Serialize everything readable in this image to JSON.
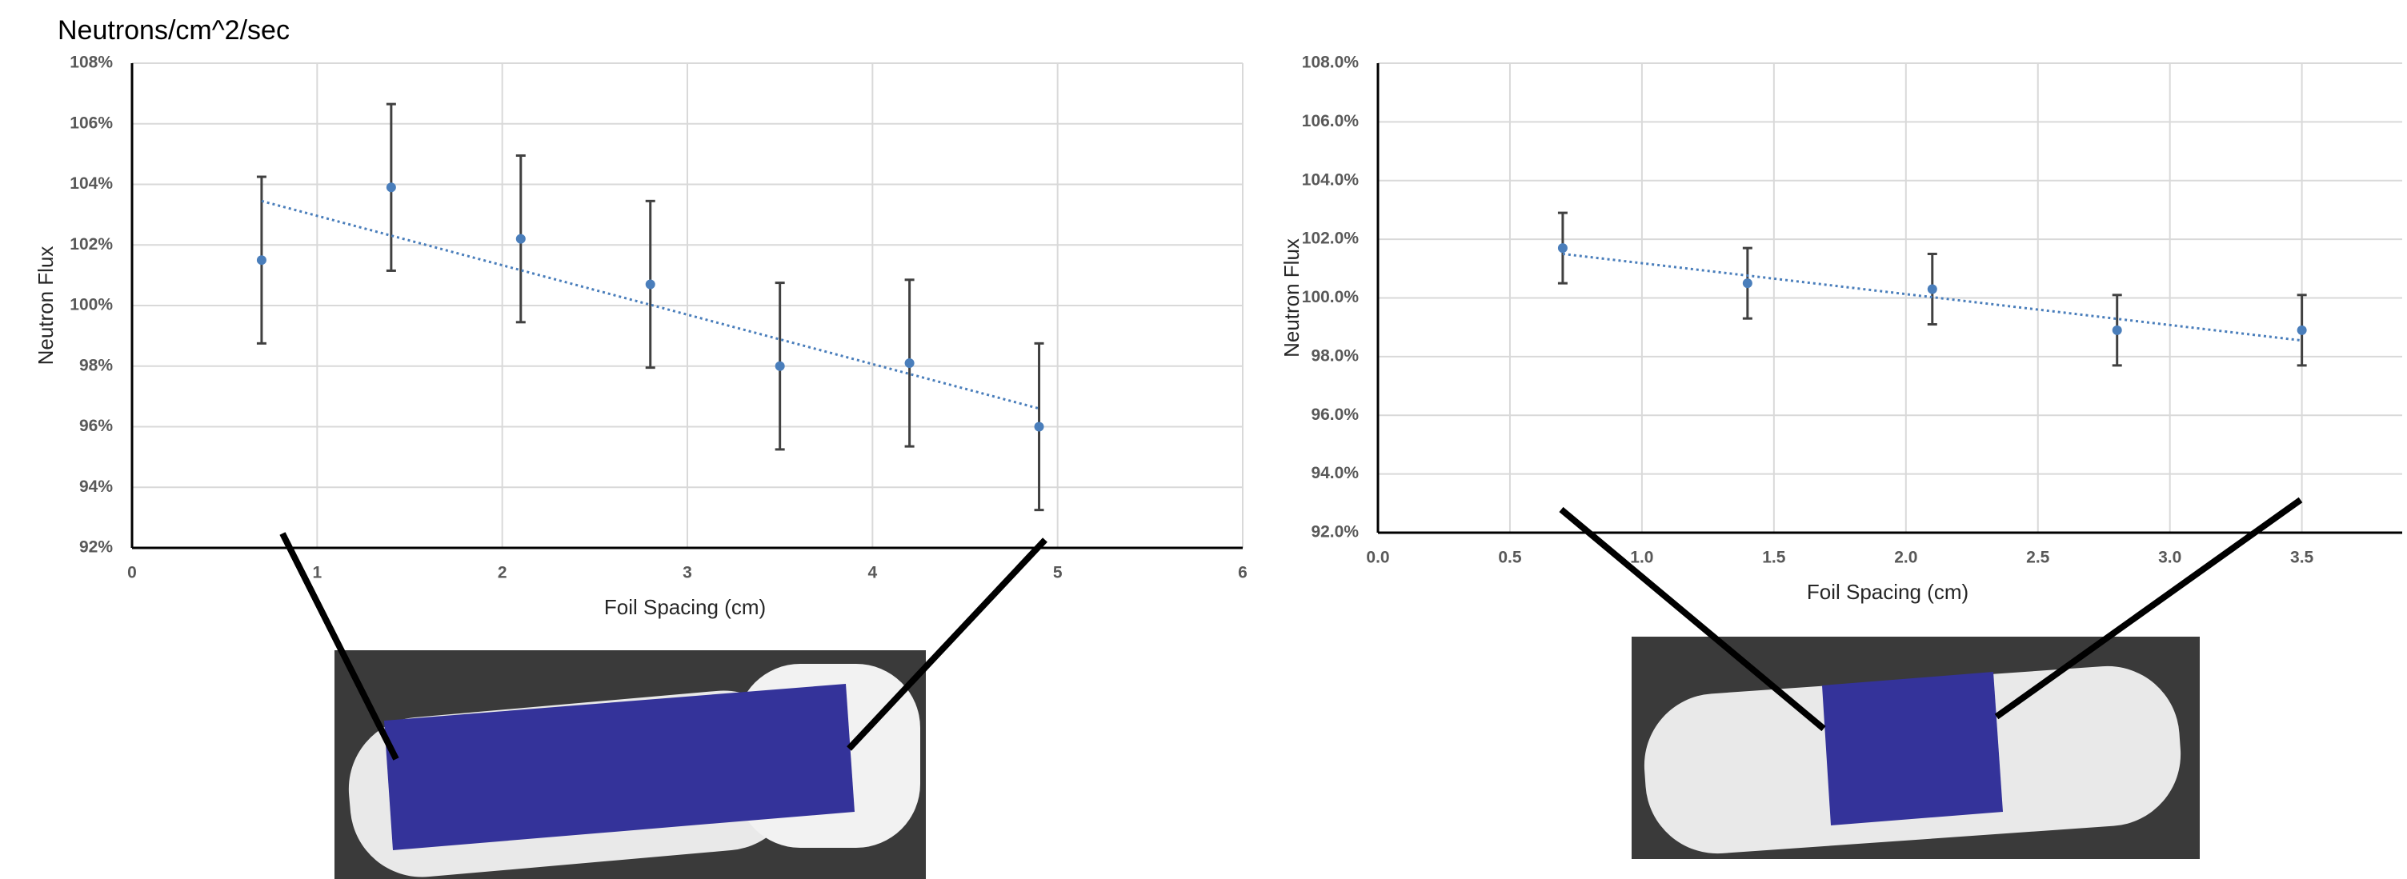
{
  "chart_data": [
    {
      "type": "scatter",
      "title": "Neutrons/cm^2/sec",
      "x_label": "Foil Spacing (cm)",
      "y_label": "Neutron Flux",
      "x": [
        0.7,
        1.4,
        2.1,
        2.8,
        3.5,
        4.2,
        4.9
      ],
      "values": [
        101.5,
        103.9,
        102.2,
        100.7,
        98.0,
        98.1,
        96.0
      ],
      "errors": [
        2.75,
        2.75,
        2.75,
        2.75,
        2.75,
        2.75,
        2.75
      ],
      "color": "#4a7ebb",
      "trendline": {
        "x": [
          0.7,
          4.9
        ],
        "values": [
          103.45,
          96.6
        ]
      },
      "xlim": [
        0,
        6
      ],
      "xticks": [
        0,
        1,
        2,
        3,
        4,
        5,
        6
      ],
      "ylim": [
        92,
        108
      ],
      "yticks": [
        {
          "value": 92,
          "label": "92%"
        },
        {
          "value": 94,
          "label": "94%"
        },
        {
          "value": 96,
          "label": "96%"
        },
        {
          "value": 98,
          "label": "98%"
        },
        {
          "value": 100,
          "label": "100%"
        },
        {
          "value": 102,
          "label": "102%"
        },
        {
          "value": 104,
          "label": "104%"
        },
        {
          "value": 106,
          "label": "106%"
        },
        {
          "value": 108,
          "label": "108%"
        }
      ],
      "grid": true
    },
    {
      "type": "scatter",
      "x_label": "Foil Spacing (cm)",
      "y_label": "Neutron Flux",
      "x": [
        0.7,
        1.4,
        2.1,
        2.8,
        3.5
      ],
      "values": [
        101.7,
        100.5,
        100.3,
        98.9,
        98.9
      ],
      "errors": [
        1.2,
        1.2,
        1.2,
        1.2,
        1.2
      ],
      "color": "#4a7ebb",
      "trendline": {
        "x": [
          0.7,
          3.5
        ],
        "values": [
          101.5,
          98.55
        ]
      },
      "xlim": [
        0,
        3.88
      ],
      "xticks": [
        {
          "value": 0,
          "label": "0.0"
        },
        {
          "value": 0.5,
          "label": "0.5"
        },
        {
          "value": 1,
          "label": "1.0"
        },
        {
          "value": 1.5,
          "label": "1.5"
        },
        {
          "value": 2,
          "label": "2.0"
        },
        {
          "value": 2.5,
          "label": "2.5"
        },
        {
          "value": 3,
          "label": "3.0"
        },
        {
          "value": 3.5,
          "label": "3.5"
        }
      ],
      "ylim": [
        92,
        108
      ],
      "yticks": [
        {
          "value": 92,
          "label": "92.0%"
        },
        {
          "value": 94,
          "label": "94.0%"
        },
        {
          "value": 96,
          "label": "96.0%"
        },
        {
          "value": 98,
          "label": "98.0%"
        },
        {
          "value": 100,
          "label": "100.0%"
        },
        {
          "value": 102,
          "label": "102.0%"
        },
        {
          "value": 104,
          "label": "104.0%"
        },
        {
          "value": 106,
          "label": "106.0%"
        },
        {
          "value": 108,
          "label": "108.0%"
        }
      ],
      "grid": true
    }
  ]
}
